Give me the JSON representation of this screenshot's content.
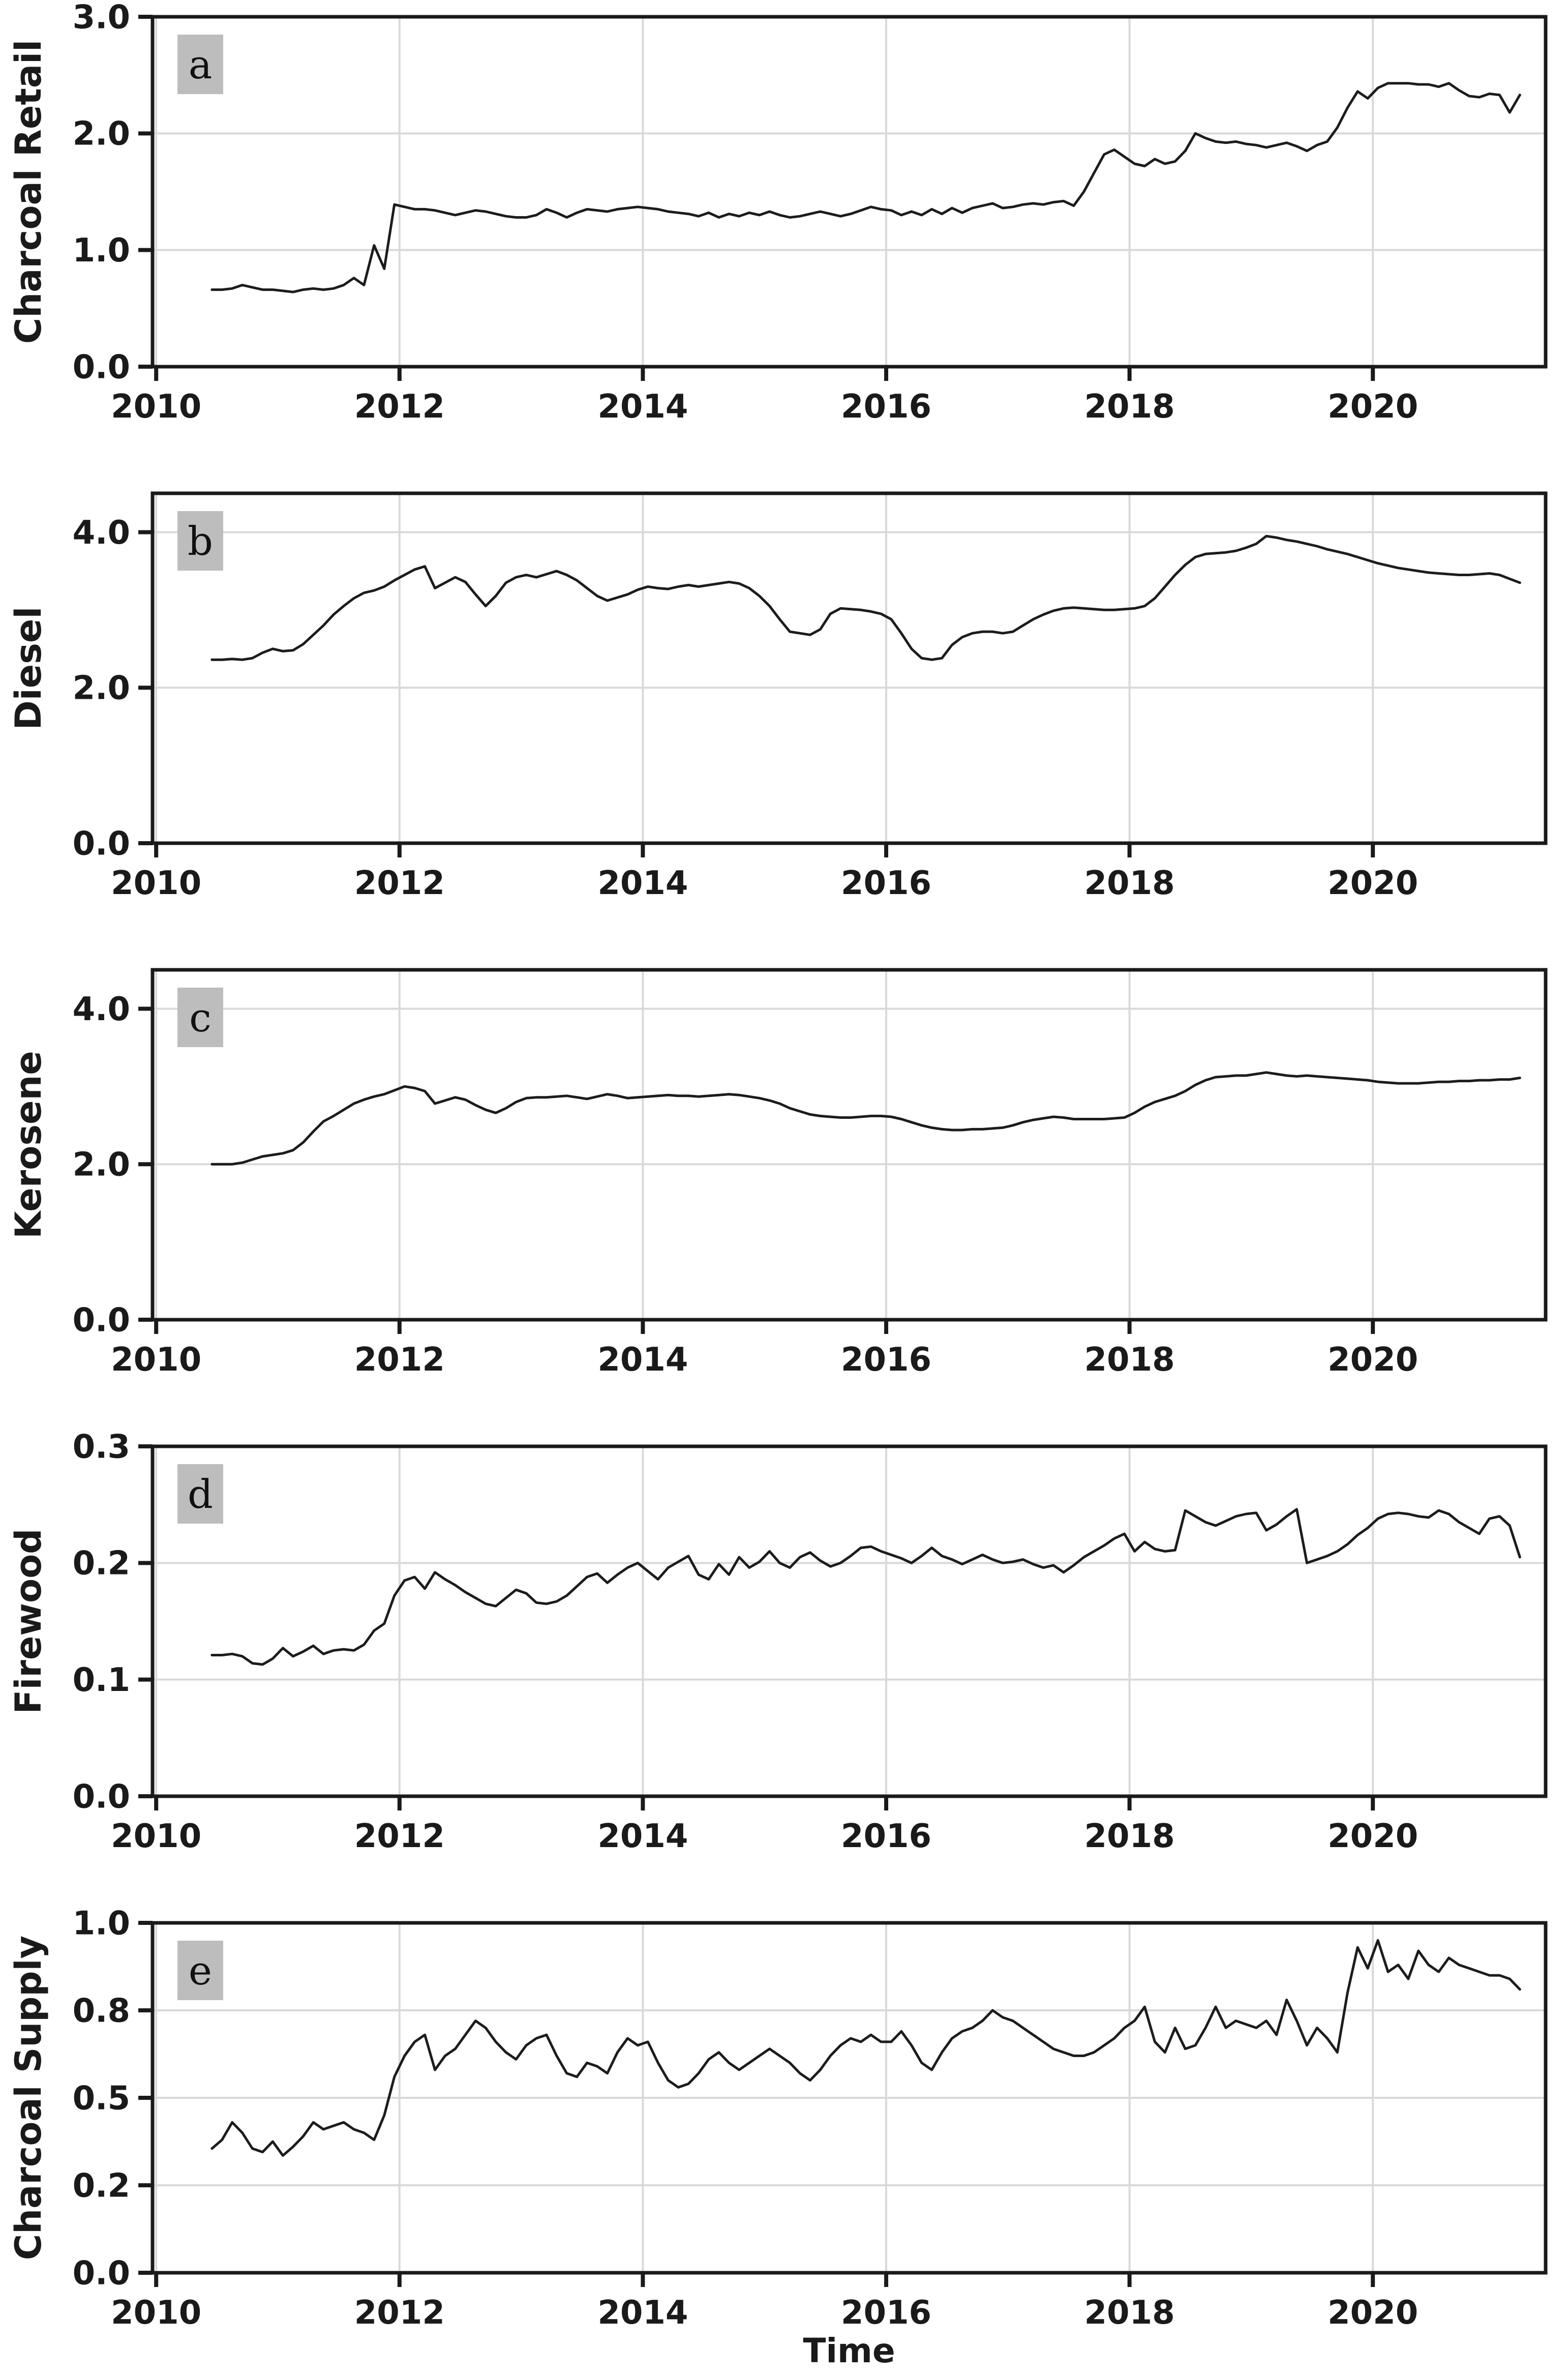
{
  "figure": {
    "background": "#ffffff",
    "colors": {
      "line": "#1c1c1c",
      "grid": "#d9d9d9",
      "spine": "#1a1a1a",
      "text": "#1a1a1a",
      "letter_box_bg": "#bdbdbd",
      "letter_text": "#111111"
    }
  },
  "xaxis": {
    "label": "Time",
    "lim": [
      2009.97,
      2021.42
    ],
    "ticks": [
      {
        "v": 2010,
        "label": "2010"
      },
      {
        "v": 2012,
        "label": "2012"
      },
      {
        "v": 2014,
        "label": "2014"
      },
      {
        "v": 2016,
        "label": "2016"
      },
      {
        "v": 2018,
        "label": "2018"
      },
      {
        "v": 2020,
        "label": "2020"
      }
    ]
  },
  "chart_data": [
    {
      "type": "line",
      "panel_letter": "a",
      "ylabel": "Charcoal Retail",
      "ylim": [
        0,
        3.0
      ],
      "yticks": [
        {
          "v": 0,
          "label": "0.0"
        },
        {
          "v": 1.0,
          "label": "1.0"
        },
        {
          "v": 2.0,
          "label": "2.0"
        },
        {
          "v": 3.0,
          "label": "3.0"
        }
      ],
      "x_start": 2010.458,
      "x_step": 0.0833333,
      "values": [
        0.66,
        0.66,
        0.67,
        0.7,
        0.68,
        0.66,
        0.66,
        0.65,
        0.64,
        0.66,
        0.67,
        0.66,
        0.67,
        0.7,
        0.76,
        0.7,
        1.04,
        0.84,
        1.39,
        1.37,
        1.35,
        1.35,
        1.34,
        1.32,
        1.3,
        1.32,
        1.34,
        1.33,
        1.31,
        1.29,
        1.28,
        1.28,
        1.3,
        1.35,
        1.32,
        1.28,
        1.32,
        1.35,
        1.34,
        1.33,
        1.35,
        1.36,
        1.37,
        1.36,
        1.35,
        1.33,
        1.32,
        1.31,
        1.29,
        1.32,
        1.28,
        1.31,
        1.29,
        1.32,
        1.3,
        1.33,
        1.3,
        1.28,
        1.29,
        1.31,
        1.33,
        1.31,
        1.29,
        1.31,
        1.34,
        1.37,
        1.35,
        1.34,
        1.3,
        1.33,
        1.3,
        1.35,
        1.31,
        1.36,
        1.32,
        1.36,
        1.38,
        1.4,
        1.36,
        1.37,
        1.39,
        1.4,
        1.39,
        1.41,
        1.42,
        1.38,
        1.5,
        1.66,
        1.82,
        1.86,
        1.8,
        1.74,
        1.72,
        1.78,
        1.74,
        1.76,
        1.85,
        2.0,
        1.96,
        1.93,
        1.92,
        1.93,
        1.91,
        1.9,
        1.88,
        1.9,
        1.92,
        1.89,
        1.85,
        1.9,
        1.93,
        2.05,
        2.22,
        2.36,
        2.3,
        2.39,
        2.43,
        2.43,
        2.43,
        2.42,
        2.42,
        2.4,
        2.43,
        2.37,
        2.32,
        2.31,
        2.34,
        2.33,
        2.18,
        2.33
      ]
    },
    {
      "type": "line",
      "panel_letter": "b",
      "ylabel": "Diesel",
      "ylim": [
        0,
        4.5
      ],
      "yticks": [
        {
          "v": 0,
          "label": "0.0"
        },
        {
          "v": 2.0,
          "label": "2.0"
        },
        {
          "v": 4.0,
          "label": "4.0"
        }
      ],
      "x_start": 2010.458,
      "x_step": 0.0833333,
      "values": [
        2.36,
        2.36,
        2.37,
        2.36,
        2.38,
        2.45,
        2.5,
        2.47,
        2.48,
        2.56,
        2.68,
        2.8,
        2.94,
        3.05,
        3.15,
        3.22,
        3.25,
        3.3,
        3.38,
        3.45,
        3.52,
        3.56,
        3.28,
        3.35,
        3.42,
        3.36,
        3.2,
        3.05,
        3.18,
        3.35,
        3.42,
        3.45,
        3.42,
        3.46,
        3.5,
        3.45,
        3.38,
        3.28,
        3.18,
        3.12,
        3.16,
        3.2,
        3.26,
        3.3,
        3.28,
        3.27,
        3.3,
        3.32,
        3.3,
        3.32,
        3.34,
        3.36,
        3.34,
        3.28,
        3.18,
        3.05,
        2.88,
        2.72,
        2.7,
        2.68,
        2.75,
        2.95,
        3.02,
        3.01,
        3.0,
        2.98,
        2.95,
        2.88,
        2.7,
        2.5,
        2.38,
        2.36,
        2.38,
        2.55,
        2.65,
        2.7,
        2.72,
        2.72,
        2.7,
        2.72,
        2.8,
        2.88,
        2.94,
        2.99,
        3.02,
        3.03,
        3.02,
        3.01,
        3.0,
        3.0,
        3.01,
        3.02,
        3.05,
        3.15,
        3.3,
        3.45,
        3.58,
        3.68,
        3.72,
        3.73,
        3.74,
        3.76,
        3.8,
        3.85,
        3.95,
        3.93,
        3.9,
        3.88,
        3.85,
        3.82,
        3.78,
        3.75,
        3.72,
        3.68,
        3.64,
        3.6,
        3.57,
        3.54,
        3.52,
        3.5,
        3.48,
        3.47,
        3.46,
        3.45,
        3.45,
        3.46,
        3.47,
        3.45,
        3.4,
        3.35
      ]
    },
    {
      "type": "line",
      "panel_letter": "c",
      "ylabel": "Kerosene",
      "ylim": [
        0,
        4.5
      ],
      "yticks": [
        {
          "v": 0,
          "label": "0.0"
        },
        {
          "v": 2.0,
          "label": "2.0"
        },
        {
          "v": 4.0,
          "label": "4.0"
        }
      ],
      "x_start": 2010.458,
      "x_step": 0.0833333,
      "values": [
        2.0,
        2.0,
        2.0,
        2.02,
        2.06,
        2.1,
        2.12,
        2.14,
        2.18,
        2.28,
        2.42,
        2.55,
        2.62,
        2.7,
        2.78,
        2.83,
        2.87,
        2.9,
        2.95,
        3.0,
        2.98,
        2.94,
        2.78,
        2.82,
        2.86,
        2.83,
        2.76,
        2.7,
        2.66,
        2.72,
        2.8,
        2.85,
        2.86,
        2.86,
        2.87,
        2.88,
        2.86,
        2.84,
        2.87,
        2.9,
        2.88,
        2.85,
        2.86,
        2.87,
        2.88,
        2.89,
        2.88,
        2.88,
        2.87,
        2.88,
        2.89,
        2.9,
        2.89,
        2.87,
        2.85,
        2.82,
        2.78,
        2.72,
        2.68,
        2.64,
        2.62,
        2.61,
        2.6,
        2.6,
        2.61,
        2.62,
        2.62,
        2.61,
        2.58,
        2.54,
        2.5,
        2.47,
        2.45,
        2.44,
        2.44,
        2.45,
        2.45,
        2.46,
        2.47,
        2.5,
        2.54,
        2.57,
        2.59,
        2.61,
        2.6,
        2.58,
        2.58,
        2.58,
        2.58,
        2.59,
        2.6,
        2.66,
        2.74,
        2.8,
        2.84,
        2.88,
        2.94,
        3.02,
        3.08,
        3.12,
        3.13,
        3.14,
        3.14,
        3.16,
        3.18,
        3.16,
        3.14,
        3.13,
        3.14,
        3.13,
        3.12,
        3.11,
        3.1,
        3.09,
        3.08,
        3.06,
        3.05,
        3.04,
        3.04,
        3.04,
        3.05,
        3.06,
        3.06,
        3.07,
        3.07,
        3.08,
        3.08,
        3.09,
        3.09,
        3.11
      ]
    },
    {
      "type": "line",
      "panel_letter": "d",
      "ylabel": "Firewood",
      "ylim": [
        0,
        0.3
      ],
      "yticks": [
        {
          "v": 0,
          "label": "0.0"
        },
        {
          "v": 0.1,
          "label": "0.1"
        },
        {
          "v": 0.2,
          "label": "0.2"
        },
        {
          "v": 0.3,
          "label": "0.3"
        }
      ],
      "x_start": 2010.458,
      "x_step": 0.0833333,
      "values": [
        0.121,
        0.121,
        0.122,
        0.12,
        0.114,
        0.113,
        0.118,
        0.127,
        0.12,
        0.124,
        0.129,
        0.122,
        0.125,
        0.126,
        0.125,
        0.13,
        0.142,
        0.148,
        0.172,
        0.185,
        0.188,
        0.178,
        0.192,
        0.186,
        0.181,
        0.175,
        0.17,
        0.165,
        0.163,
        0.17,
        0.177,
        0.174,
        0.166,
        0.165,
        0.167,
        0.172,
        0.18,
        0.188,
        0.191,
        0.183,
        0.19,
        0.196,
        0.2,
        0.193,
        0.186,
        0.196,
        0.201,
        0.206,
        0.19,
        0.186,
        0.199,
        0.19,
        0.205,
        0.196,
        0.201,
        0.21,
        0.2,
        0.196,
        0.205,
        0.209,
        0.202,
        0.197,
        0.2,
        0.206,
        0.213,
        0.214,
        0.21,
        0.207,
        0.204,
        0.2,
        0.206,
        0.213,
        0.206,
        0.203,
        0.199,
        0.203,
        0.207,
        0.203,
        0.2,
        0.201,
        0.203,
        0.199,
        0.196,
        0.198,
        0.192,
        0.198,
        0.205,
        0.21,
        0.215,
        0.221,
        0.225,
        0.21,
        0.218,
        0.212,
        0.21,
        0.211,
        0.245,
        0.24,
        0.235,
        0.232,
        0.236,
        0.24,
        0.242,
        0.243,
        0.228,
        0.233,
        0.24,
        0.246,
        0.2,
        0.203,
        0.206,
        0.21,
        0.216,
        0.224,
        0.23,
        0.238,
        0.242,
        0.243,
        0.242,
        0.24,
        0.239,
        0.245,
        0.242,
        0.235,
        0.23,
        0.225,
        0.238,
        0.24,
        0.232,
        0.205
      ]
    },
    {
      "type": "line",
      "panel_letter": "e",
      "ylabel": "Charcoal Supply",
      "ylim": [
        0,
        1.0
      ],
      "yticks": [
        {
          "v": 0,
          "label": "0.0"
        },
        {
          "v": 0.25,
          "label": "0.2"
        },
        {
          "v": 0.5,
          "label": "0.5"
        },
        {
          "v": 0.75,
          "label": "0.8"
        },
        {
          "v": 1.0,
          "label": "1.0"
        }
      ],
      "x_start": 2010.458,
      "x_step": 0.0833333,
      "values": [
        0.355,
        0.38,
        0.43,
        0.4,
        0.355,
        0.345,
        0.375,
        0.335,
        0.36,
        0.39,
        0.43,
        0.41,
        0.42,
        0.43,
        0.41,
        0.4,
        0.38,
        0.45,
        0.56,
        0.62,
        0.66,
        0.68,
        0.58,
        0.62,
        0.64,
        0.68,
        0.72,
        0.7,
        0.66,
        0.63,
        0.61,
        0.65,
        0.67,
        0.68,
        0.62,
        0.57,
        0.56,
        0.6,
        0.59,
        0.57,
        0.63,
        0.67,
        0.65,
        0.66,
        0.6,
        0.55,
        0.53,
        0.54,
        0.57,
        0.61,
        0.63,
        0.6,
        0.58,
        0.6,
        0.62,
        0.64,
        0.62,
        0.6,
        0.57,
        0.55,
        0.58,
        0.62,
        0.65,
        0.67,
        0.66,
        0.68,
        0.66,
        0.66,
        0.69,
        0.65,
        0.6,
        0.58,
        0.63,
        0.67,
        0.69,
        0.7,
        0.72,
        0.75,
        0.73,
        0.72,
        0.7,
        0.68,
        0.66,
        0.64,
        0.63,
        0.62,
        0.62,
        0.63,
        0.65,
        0.67,
        0.7,
        0.72,
        0.76,
        0.66,
        0.63,
        0.7,
        0.64,
        0.65,
        0.7,
        0.76,
        0.7,
        0.72,
        0.71,
        0.7,
        0.72,
        0.68,
        0.78,
        0.72,
        0.65,
        0.7,
        0.67,
        0.63,
        0.8,
        0.93,
        0.87,
        0.95,
        0.86,
        0.88,
        0.84,
        0.92,
        0.88,
        0.86,
        0.9,
        0.88,
        0.87,
        0.86,
        0.85,
        0.85,
        0.84,
        0.81
      ]
    }
  ]
}
